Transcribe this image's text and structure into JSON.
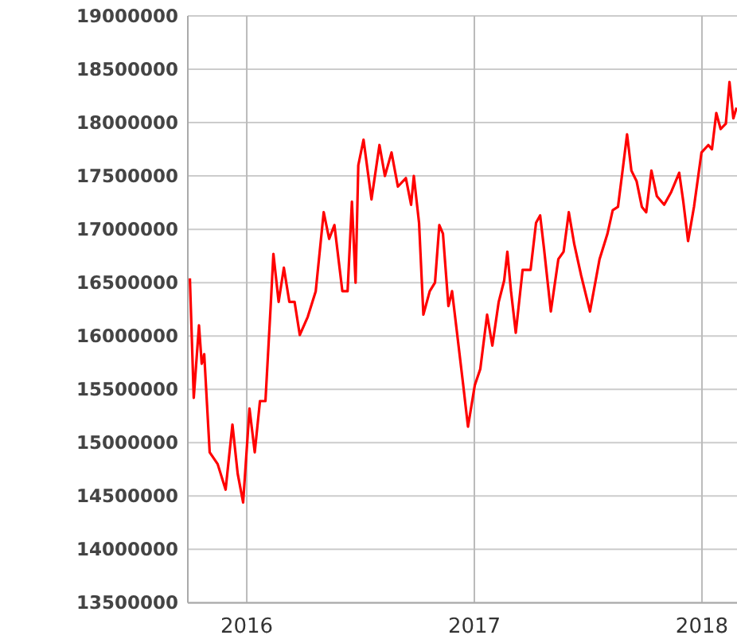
{
  "chart_data": {
    "type": "line",
    "xlim": [
      2015.741,
      2018.154
    ],
    "xticks": [
      {
        "value": 2016,
        "label": "2016"
      },
      {
        "value": 2017,
        "label": "2017"
      },
      {
        "value": 2018,
        "label": "2018"
      }
    ],
    "ylim": [
      13500000,
      19000000
    ],
    "yticks": [
      13500000,
      14000000,
      14500000,
      15000000,
      15500000,
      16000000,
      16500000,
      17000000,
      17500000,
      18000000,
      18500000,
      19000000
    ],
    "grid": true,
    "marker": "none",
    "line_style": "solid",
    "series": [
      {
        "color": "#ff0000",
        "x": [
          2015.75,
          2015.767,
          2015.79,
          2015.802,
          2015.813,
          2015.837,
          2015.872,
          2015.907,
          2015.937,
          2015.96,
          2015.984,
          2016.012,
          2016.035,
          2016.058,
          2016.082,
          2016.105,
          2016.117,
          2016.14,
          2016.163,
          2016.187,
          2016.21,
          2016.233,
          2016.268,
          2016.303,
          2016.338,
          2016.362,
          2016.385,
          2016.42,
          2016.443,
          2016.462,
          2016.478,
          2016.49,
          2016.513,
          2016.548,
          2016.583,
          2016.607,
          2016.636,
          2016.664,
          2016.699,
          2016.722,
          2016.734,
          2016.757,
          2016.776,
          2016.804,
          2016.827,
          2016.846,
          2016.862,
          2016.886,
          2016.902,
          2016.921,
          2016.951,
          2016.972,
          2017.002,
          2017.026,
          2017.056,
          2017.079,
          2017.107,
          2017.131,
          2017.145,
          2017.161,
          2017.182,
          2017.212,
          2017.247,
          2017.271,
          2017.289,
          2017.306,
          2017.336,
          2017.369,
          2017.392,
          2017.415,
          2017.439,
          2017.469,
          2017.508,
          2017.55,
          2017.585,
          2017.608,
          2017.631,
          2017.65,
          2017.671,
          2017.69,
          2017.713,
          2017.736,
          2017.755,
          2017.778,
          2017.802,
          2017.834,
          2017.865,
          2017.9,
          2017.918,
          2017.939,
          2017.965,
          2017.998,
          2018.028,
          2018.044,
          2018.063,
          2018.082,
          2018.105,
          2018.121,
          2018.138,
          2018.152
        ],
        "values": [
          16540000,
          15420000,
          16100000,
          15740000,
          15830000,
          14910000,
          14800000,
          14560000,
          15170000,
          14710000,
          14440000,
          15320000,
          14910000,
          15390000,
          15390000,
          16280000,
          16770000,
          16320000,
          16640000,
          16320000,
          16320000,
          16010000,
          16180000,
          16420000,
          17160000,
          16910000,
          17040000,
          16420000,
          16420000,
          17260000,
          16500000,
          17600000,
          17840000,
          17280000,
          17790000,
          17500000,
          17720000,
          17400000,
          17480000,
          17230000,
          17500000,
          17060000,
          16200000,
          16420000,
          16500000,
          17040000,
          16960000,
          16280000,
          16420000,
          16080000,
          15540000,
          15150000,
          15540000,
          15690000,
          16200000,
          15910000,
          16320000,
          16520000,
          16790000,
          16420000,
          16030000,
          16620000,
          16620000,
          17060000,
          17130000,
          16820000,
          16230000,
          16720000,
          16790000,
          17160000,
          16860000,
          16570000,
          16230000,
          16720000,
          16960000,
          17180000,
          17210000,
          17530000,
          17890000,
          17550000,
          17450000,
          17210000,
          17160000,
          17550000,
          17310000,
          17230000,
          17350000,
          17530000,
          17260000,
          16890000,
          17210000,
          17720000,
          17790000,
          17750000,
          18090000,
          17940000,
          17990000,
          18380000,
          18040000,
          18140000
        ]
      }
    ]
  }
}
